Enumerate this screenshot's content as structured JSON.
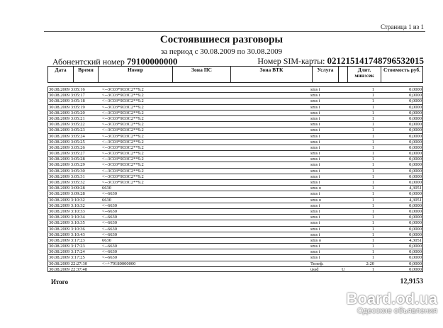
{
  "header": {
    "page": "Страница 1 из 1",
    "title": "Состоявшиеся разговоры",
    "period": "за период с 30.08.2009 по 30.08.2009",
    "account_label": "Абонентский номер",
    "account_number": "79100000000",
    "sim_label": "Номер SIM-карты:",
    "sim_number": "0212151417487965320​15"
  },
  "columns": [
    "Дата",
    "Время",
    "Номер",
    "Зона ПС",
    "Зона ВТК",
    "Услуга",
    "",
    "Длит. мин:сек",
    "Стоимость руб."
  ],
  "rows": [
    {
      "dt": "30.08.2009 3:05:16",
      "num": "<--3C03*9D3C2**9.2",
      "svc": "sms i",
      "flag": "",
      "dur": "1",
      "cost": "0,0000"
    },
    {
      "dt": "30.08.2009 3:05:17",
      "num": "<--3C03*9D3C2**9.2",
      "svc": "sms i",
      "flag": "",
      "dur": "1",
      "cost": "0,0000"
    },
    {
      "dt": "30.08.2009 3:05:18",
      "num": "<--3C03*9D3C2**9.2",
      "svc": "sms i",
      "flag": "",
      "dur": "1",
      "cost": "0,0000"
    },
    {
      "dt": "30.08.2009 3:05:19",
      "num": "<--3C03*9D3C2**9.2",
      "svc": "sms i",
      "flag": "",
      "dur": "1",
      "cost": "0,0000"
    },
    {
      "dt": "30.08.2009 3:05:20",
      "num": "<--3C03*9D3C2**9.2",
      "svc": "sms i",
      "flag": "",
      "dur": "1",
      "cost": "0,0000"
    },
    {
      "dt": "30.08.2009 3:05:21",
      "num": "<--3C03*9D3C2**9.2",
      "svc": "sms i",
      "flag": "",
      "dur": "1",
      "cost": "0,0000"
    },
    {
      "dt": "30.08.2009 3:05:22",
      "num": "<--3C03*9D3C2**9.2",
      "svc": "sms i",
      "flag": "",
      "dur": "1",
      "cost": "0,0000"
    },
    {
      "dt": "30.08.2009 3:05:23",
      "num": "<--3C03*9D3C2**9.2",
      "svc": "sms i",
      "flag": "",
      "dur": "1",
      "cost": "0,0000"
    },
    {
      "dt": "30.08.2009 3:05:24",
      "num": "<--3C03*9D3C2**9.2",
      "svc": "sms i",
      "flag": "",
      "dur": "1",
      "cost": "0,0000"
    },
    {
      "dt": "30.08.2009 3:05:25",
      "num": "<--3C03*9D3C2**9.2",
      "svc": "sms i",
      "flag": "",
      "dur": "1",
      "cost": "0,0000"
    },
    {
      "dt": "30.08.2009 3:05:26",
      "num": "<--3C03*9D3C2**9.2",
      "svc": "sms i",
      "flag": "",
      "dur": "1",
      "cost": "0,0000"
    },
    {
      "dt": "30.08.2009 3:05:27",
      "num": "<--3C03*9D3C2**9.2",
      "svc": "sms i",
      "flag": "",
      "dur": "1",
      "cost": "0,0000"
    },
    {
      "dt": "30.08.2009 3:05:28",
      "num": "<--3C03*9D3C2**9.2",
      "svc": "sms i",
      "flag": "",
      "dur": "1",
      "cost": "0,0000"
    },
    {
      "dt": "30.08.2009 3:05:29",
      "num": "<--3C03*9D3C2**9.2",
      "svc": "sms i",
      "flag": "",
      "dur": "1",
      "cost": "0,0000"
    },
    {
      "dt": "30.08.2009 3:05:30",
      "num": "<--3C03*9D3C2**9.2",
      "svc": "sms i",
      "flag": "",
      "dur": "1",
      "cost": "0,0000"
    },
    {
      "dt": "30.08.2009 3:05:31",
      "num": "<--3C03*9D3C2**9.2",
      "svc": "sms i",
      "flag": "",
      "dur": "1",
      "cost": "0,0000"
    },
    {
      "dt": "30.08.2009 3:05:32",
      "num": "<--3C03*9D3C2**9.2",
      "svc": "sms i",
      "flag": "",
      "dur": "1",
      "cost": "0,0000"
    },
    {
      "dt": "30.08.2009 3:09:28",
      "num": "6630",
      "svc": "sms o",
      "flag": "",
      "dur": "1",
      "cost": "4,3051"
    },
    {
      "dt": "30.08.2009 3:09:28",
      "num": "<--6630",
      "svc": "sms i",
      "flag": "",
      "dur": "1",
      "cost": "0,0000"
    },
    {
      "dt": "30.08.2009 3:10:32",
      "num": "6630",
      "svc": "sms o",
      "flag": "",
      "dur": "1",
      "cost": "4,3051"
    },
    {
      "dt": "30.08.2009 3:10:32",
      "num": "<--6630",
      "svc": "sms i",
      "flag": "",
      "dur": "1",
      "cost": "0,0000"
    },
    {
      "dt": "30.08.2009 3:10:33",
      "num": "<--6630",
      "svc": "sms i",
      "flag": "",
      "dur": "1",
      "cost": "0,0000"
    },
    {
      "dt": "30.08.2009 3:10:34",
      "num": "<--6630",
      "svc": "sms i",
      "flag": "",
      "dur": "1",
      "cost": "0,0000"
    },
    {
      "dt": "30.08.2009 3:10:35",
      "num": "<--6630",
      "svc": "sms i",
      "flag": "",
      "dur": "1",
      "cost": "0,0000"
    },
    {
      "dt": "30.08.2009 3:10:36",
      "num": "<--6630",
      "svc": "sms i",
      "flag": "",
      "dur": "1",
      "cost": "0,0000"
    },
    {
      "dt": "30.08.2009 3:10:43",
      "num": "<--6630",
      "svc": "sms i",
      "flag": "",
      "dur": "1",
      "cost": "0,0000"
    },
    {
      "dt": "30.08.2009 3:17:23",
      "num": "6630",
      "svc": "sms o",
      "flag": "",
      "dur": "1",
      "cost": "4,3051"
    },
    {
      "dt": "30.08.2009 3:17:23",
      "num": "<--6630",
      "svc": "sms i",
      "flag": "",
      "dur": "1",
      "cost": "0,0000"
    },
    {
      "dt": "30.08.2009 3:17:24",
      "num": "<--6630",
      "svc": "sms i",
      "flag": "",
      "dur": "1",
      "cost": "0,0000"
    },
    {
      "dt": "30.08.2009 3:17:25",
      "num": "<--6630",
      "svc": "sms i",
      "flag": "",
      "dur": "1",
      "cost": "0,0000"
    },
    {
      "dt": "30.08.2009 22:27:30",
      "num": "<--+79180000000",
      "svc": "Телеф.",
      "flag": "",
      "dur": "2:20",
      "cost": "0,0000"
    },
    {
      "dt": "30.08.2009 22:37:48",
      "num": "",
      "svc": "ussd",
      "flag": "U",
      "dur": "1",
      "cost": "0,0000"
    }
  ],
  "footer": {
    "total_label": "Итого",
    "total_value": "12,9153"
  },
  "watermark": {
    "line1": "Board.od.ua",
    "line2": "Одесские объявления"
  }
}
